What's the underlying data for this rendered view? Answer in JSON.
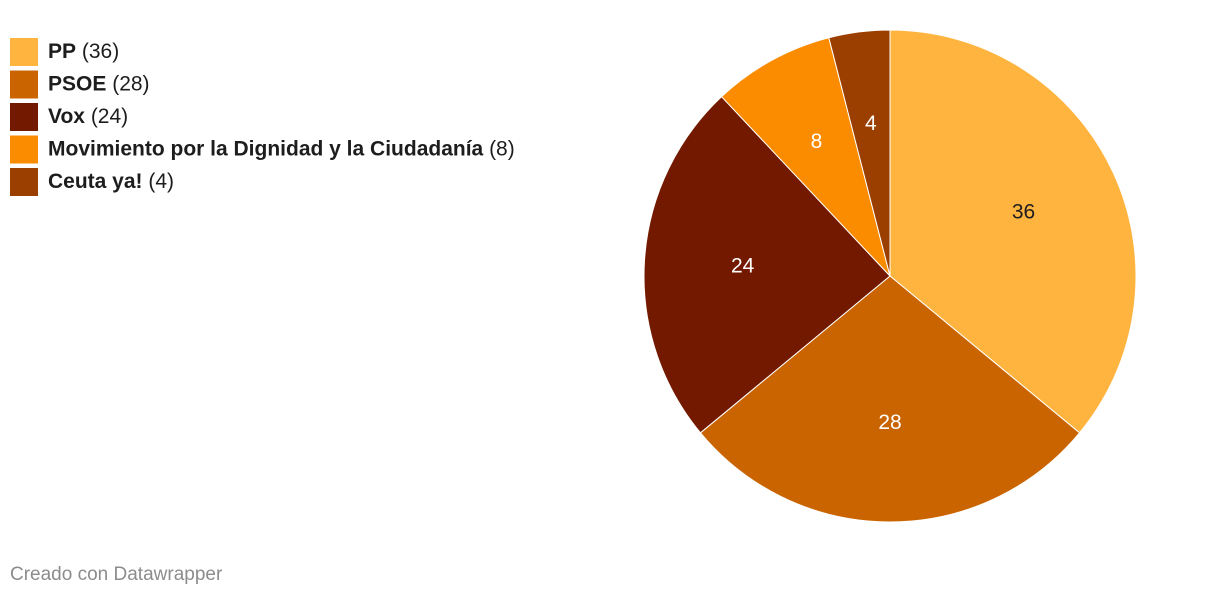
{
  "chart_data": {
    "type": "pie",
    "categories": [
      "PP",
      "PSOE",
      "Vox",
      "Movimiento por la Dignidad y la Ciudadanía",
      "Ceuta ya!"
    ],
    "values": [
      36,
      28,
      24,
      8,
      4
    ],
    "legend_value_labels": [
      "(36)",
      "(28)",
      "(24)",
      "(8)",
      "(4)"
    ],
    "colors": [
      "#ffb43f",
      "#c96400",
      "#731900",
      "#fb8c00",
      "#9a3f00"
    ],
    "credit": "Creado con Datawrapper"
  }
}
